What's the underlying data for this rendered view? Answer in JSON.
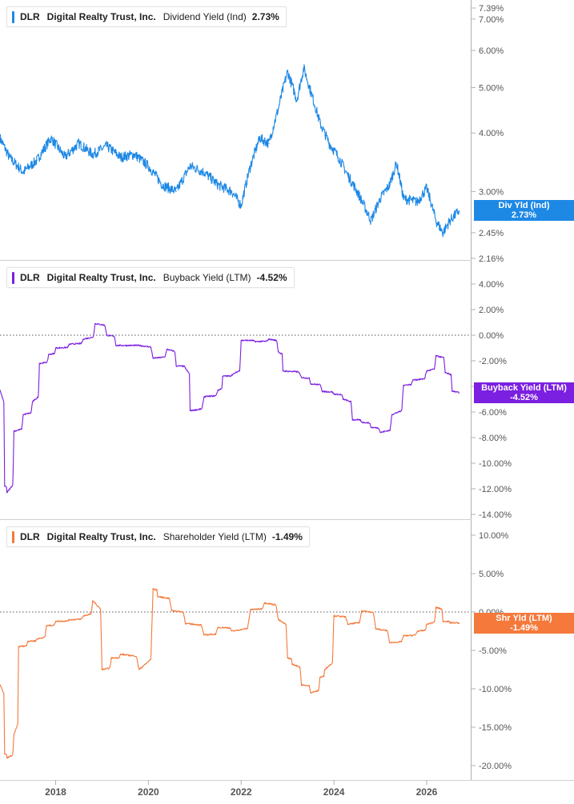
{
  "colors": {
    "dividend": "#1e88e5",
    "buyback": "#7b1fe0",
    "shareholder": "#f4793b",
    "axis": "#b0b0b0",
    "tick_text": "#555555",
    "zero_line": "#555555"
  },
  "x_axis": {
    "ticks": [
      "2018",
      "2020",
      "2022",
      "2024",
      "2026"
    ]
  },
  "chart_data": [
    {
      "type": "line",
      "ticker": "DLR",
      "company": "Digital Realty Trust, Inc.",
      "metric": "Dividend Yield (Ind)",
      "current_value": "2.73%",
      "tag_title": "Div Yld (Ind)",
      "tag_value": "2.73%",
      "y_scale": "log",
      "ylim": [
        2.16,
        7.39
      ],
      "y_ticks": [
        7.39,
        7.0,
        6.0,
        5.0,
        4.0,
        3.0,
        2.45,
        2.16
      ],
      "y_tick_labels": [
        "7.39%",
        "7.00%",
        "6.00%",
        "5.00%",
        "4.00%",
        "3.00%",
        "2.45%",
        "2.16%"
      ],
      "x": [
        2016.8,
        2017.0,
        2017.3,
        2017.6,
        2017.9,
        2018.2,
        2018.5,
        2018.8,
        2019.1,
        2019.4,
        2019.7,
        2020.0,
        2020.3,
        2020.6,
        2020.9,
        2021.2,
        2021.5,
        2021.8,
        2022.0,
        2022.2,
        2022.4,
        2022.6,
        2022.8,
        2023.0,
        2023.2,
        2023.35,
        2023.5,
        2023.7,
        2023.9,
        2024.1,
        2024.3,
        2024.5,
        2024.8,
        2025.0,
        2025.2,
        2025.35,
        2025.5,
        2025.8,
        2026.0,
        2026.2,
        2026.35,
        2026.5,
        2026.7
      ],
      "values": [
        3.9,
        3.55,
        3.3,
        3.5,
        3.9,
        3.55,
        3.8,
        3.6,
        3.75,
        3.55,
        3.6,
        3.4,
        3.1,
        3.0,
        3.4,
        3.3,
        3.1,
        3.0,
        2.8,
        3.4,
        3.9,
        3.8,
        4.5,
        5.4,
        4.7,
        5.5,
        4.9,
        4.2,
        3.8,
        3.55,
        3.25,
        3.0,
        2.6,
        2.9,
        3.1,
        3.45,
        2.9,
        2.85,
        3.05,
        2.6,
        2.45,
        2.6,
        2.73
      ]
    },
    {
      "type": "line",
      "ticker": "DLR",
      "company": "Digital Realty Trust, Inc.",
      "metric": "Buyback Yield (LTM)",
      "current_value": "-4.52%",
      "tag_title": "Buyback Yield (LTM)",
      "tag_value": "-4.52%",
      "y_scale": "linear",
      "ylim": [
        -14.0,
        4.0
      ],
      "y_ticks": [
        4,
        2,
        0,
        -2,
        -4,
        -6,
        -8,
        -10,
        -12,
        -14
      ],
      "y_tick_labels": [
        "4.00%",
        "2.00%",
        "0.00%",
        "-2.00%",
        "-4.00%",
        "-6.00%",
        "-8.00%",
        "-10.00%",
        "-12.00%",
        "-14.00%"
      ],
      "x": [
        2016.8,
        2016.9,
        2016.95,
        2017.1,
        2017.3,
        2017.5,
        2017.65,
        2017.85,
        2018.0,
        2018.3,
        2018.6,
        2018.85,
        2019.1,
        2019.3,
        2019.8,
        2020.1,
        2020.4,
        2020.6,
        2020.8,
        2020.9,
        2021.2,
        2021.5,
        2021.6,
        2021.8,
        2022.0,
        2022.3,
        2022.6,
        2022.8,
        2022.9,
        2023.3,
        2023.5,
        2023.75,
        2024.0,
        2024.2,
        2024.4,
        2024.6,
        2024.8,
        2025.0,
        2025.25,
        2025.5,
        2025.7,
        2026.0,
        2026.2,
        2026.4,
        2026.55,
        2026.7
      ],
      "values": [
        -4.3,
        -11.8,
        -12.3,
        -7.5,
        -6.2,
        -5.2,
        -2.2,
        -1.5,
        -1.0,
        -0.7,
        -0.3,
        0.9,
        0.0,
        -0.8,
        -0.8,
        -1.8,
        -1.1,
        -2.4,
        -2.6,
        -5.9,
        -4.8,
        -4.3,
        -3.2,
        -3.1,
        -0.4,
        -0.5,
        -0.3,
        -1.3,
        -2.8,
        -3.3,
        -3.8,
        -4.4,
        -4.6,
        -5.0,
        -6.6,
        -6.8,
        -7.2,
        -7.6,
        -6.2,
        -3.9,
        -3.5,
        -2.8,
        -1.6,
        -2.9,
        -4.4,
        -4.52
      ]
    },
    {
      "type": "line",
      "ticker": "DLR",
      "company": "Digital Realty Trust, Inc.",
      "metric": "Shareholder Yield (LTM)",
      "current_value": "-1.49%",
      "tag_title": "Shr Yld (LTM)",
      "tag_value": "-1.49%",
      "y_scale": "linear",
      "ylim": [
        -20.0,
        10.0
      ],
      "y_ticks": [
        10,
        5,
        0,
        -5,
        -10,
        -15,
        -20
      ],
      "y_tick_labels": [
        "10.00%",
        "5.00%",
        "0.00%",
        "-5.00%",
        "-10.00%",
        "-15.00%",
        "-20.00%"
      ],
      "x": [
        2016.8,
        2016.9,
        2016.95,
        2017.1,
        2017.2,
        2017.4,
        2017.6,
        2017.8,
        2018.0,
        2018.3,
        2018.6,
        2018.8,
        2019.0,
        2019.2,
        2019.4,
        2019.8,
        2020.1,
        2020.2,
        2020.5,
        2020.8,
        2021.2,
        2021.5,
        2021.8,
        2022.2,
        2022.5,
        2022.8,
        2023.0,
        2023.1,
        2023.3,
        2023.5,
        2023.7,
        2023.8,
        2024.0,
        2024.3,
        2024.6,
        2024.9,
        2025.2,
        2025.5,
        2025.8,
        2026.0,
        2026.2,
        2026.35,
        2026.5,
        2026.7
      ],
      "values": [
        -9.5,
        -18.5,
        -19.0,
        -16.0,
        -4.5,
        -3.8,
        -3.5,
        -1.8,
        -1.2,
        -1.0,
        -0.5,
        1.5,
        -7.5,
        -6.0,
        -5.5,
        -7.5,
        3.0,
        2.0,
        0.2,
        -1.5,
        -3.0,
        -2.0,
        -2.5,
        0.3,
        1.2,
        -1.0,
        -6.0,
        -6.8,
        -9.5,
        -10.5,
        -8.5,
        -7.5,
        -0.5,
        -1.6,
        0.2,
        -2.2,
        -4.0,
        -3.1,
        -2.5,
        -1.6,
        0.6,
        -1.2,
        -1.4,
        -1.49
      ]
    }
  ]
}
